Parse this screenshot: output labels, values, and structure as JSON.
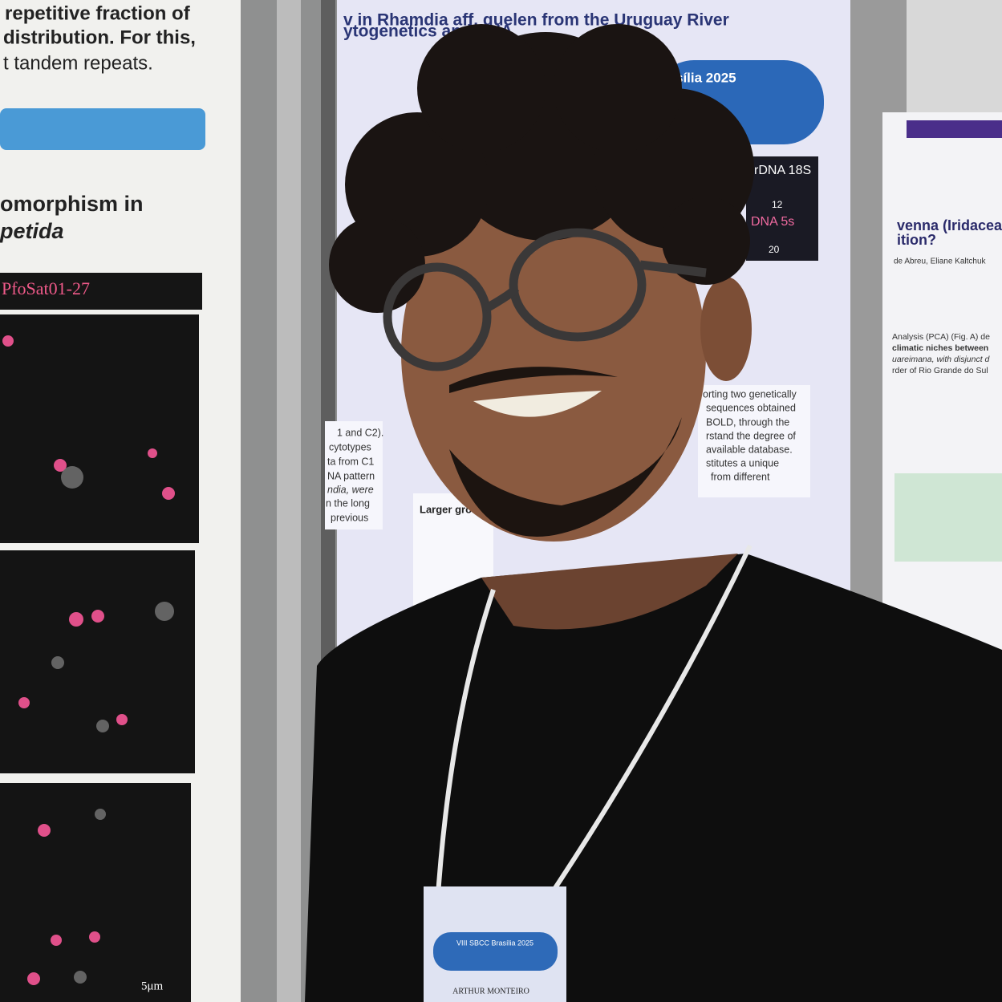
{
  "left_poster": {
    "lines": [
      "repetitive fraction of",
      "distribution. For this,",
      "t tandem repeats."
    ],
    "heading": [
      "omorphism in",
      "petida"
    ],
    "panel_label": "PfoSat01-27",
    "scale_bar": "5μm"
  },
  "center_poster": {
    "title": [
      "v in Rhamdia aff. quelen from the Uruguay River",
      "ytogenetics and DNA"
    ],
    "banner": "sília 2025",
    "figure_labels": [
      "rDNA 18S",
      "12",
      "DNA 5s",
      "20"
    ],
    "body": [
      "orting two genetically",
      "sequences obtained",
      "BOLD, through the",
      "rstand the degree of",
      "available database.",
      "stitutes a unique",
      "from different"
    ],
    "left_column": [
      "1 and C2).",
      "cytotypes",
      "ta from C1",
      "NA pattern",
      "ndia, were",
      "n the long",
      "previous"
    ],
    "figure_title": "Larger gro"
  },
  "right_poster": {
    "title": [
      "venna (Iridaceae",
      "ition?"
    ],
    "authors": "de Abreu, Eliane Kaltchuk",
    "body": [
      "Analysis (PCA) (Fig. A) de",
      "climatic niches between",
      "uareimana, with disjunct d",
      "rder of Rio Grande do Sul"
    ]
  },
  "badge": {
    "event": "VIII SBCC Brasília 2025",
    "name": "ARTHUR MONTEIRO"
  }
}
